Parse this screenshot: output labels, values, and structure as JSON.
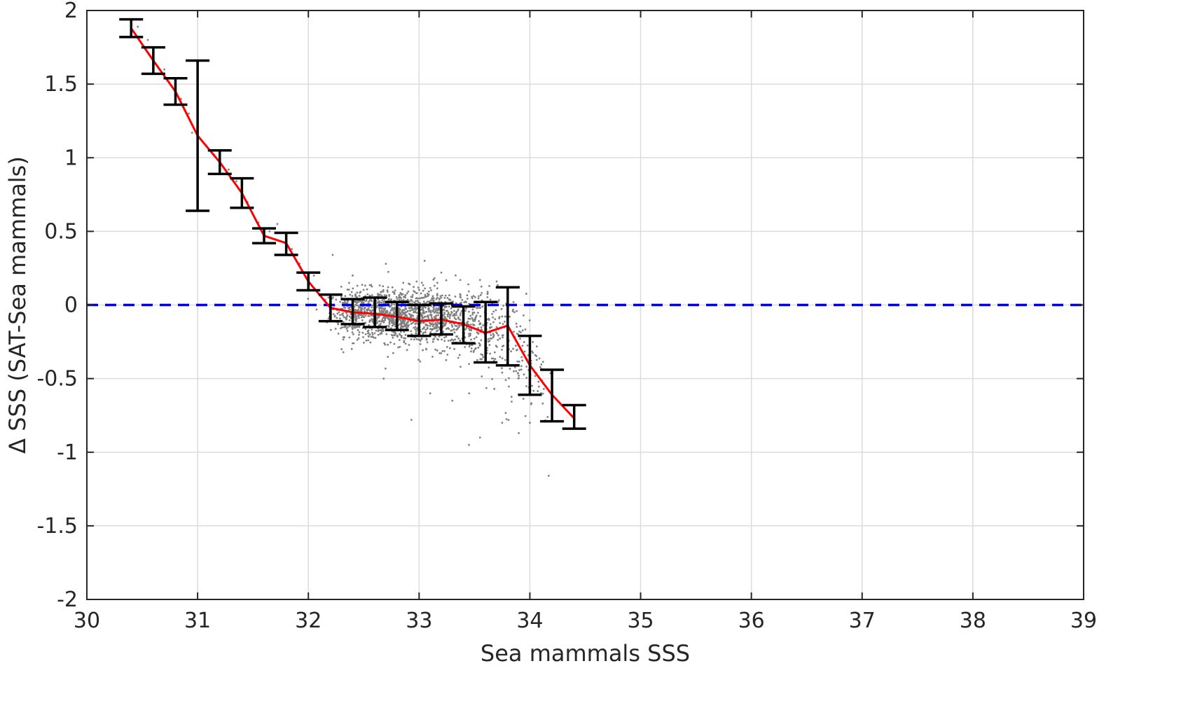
{
  "chart_data": {
    "type": "scatter",
    "xlabel": "Sea mammals SSS",
    "ylabel": "Δ SSS (SAT-Sea mammals)",
    "xlim": [
      30,
      39
    ],
    "ylim": [
      -2,
      2
    ],
    "xticks": [
      "30",
      "31",
      "32",
      "33",
      "34",
      "35",
      "36",
      "37",
      "38",
      "39"
    ],
    "yticks": [
      "2",
      "1.5",
      "1",
      "0.5",
      "0",
      "-0.5",
      "-1",
      "-1.5",
      "-2"
    ],
    "grid": true,
    "reference_line": {
      "y": 0,
      "style": "dashed",
      "color": "#0000e6"
    },
    "binned_mean": {
      "color": "#ff0000",
      "x": [
        30.4,
        30.6,
        30.8,
        31.0,
        31.2,
        31.4,
        31.6,
        31.8,
        32.0,
        32.2,
        32.4,
        32.6,
        32.8,
        33.0,
        33.2,
        33.4,
        33.6,
        33.8,
        34.0,
        34.2,
        34.4
      ],
      "y": [
        1.88,
        1.66,
        1.45,
        1.15,
        0.97,
        0.76,
        0.47,
        0.42,
        0.16,
        -0.02,
        -0.05,
        -0.06,
        -0.08,
        -0.11,
        -0.1,
        -0.13,
        -0.19,
        -0.14,
        -0.41,
        -0.61,
        -0.77
      ],
      "err_low": [
        1.82,
        1.57,
        1.36,
        0.64,
        0.89,
        0.66,
        0.42,
        0.34,
        0.1,
        -0.11,
        -0.13,
        -0.15,
        -0.17,
        -0.21,
        -0.2,
        -0.26,
        -0.39,
        -0.41,
        -0.61,
        -0.79,
        -0.84
      ],
      "err_high": [
        1.94,
        1.75,
        1.54,
        1.66,
        1.05,
        0.86,
        0.52,
        0.49,
        0.22,
        0.07,
        0.04,
        0.05,
        0.02,
        0.0,
        0.01,
        -0.01,
        0.02,
        0.12,
        -0.21,
        -0.44,
        -0.68
      ]
    },
    "scatter": {
      "color": "#808080",
      "outliers": [
        [
          30.46,
          1.89
        ],
        [
          30.55,
          1.8
        ],
        [
          30.7,
          1.6
        ],
        [
          30.85,
          1.4
        ],
        [
          30.92,
          1.3
        ],
        [
          30.95,
          1.17
        ],
        [
          31.08,
          1.08
        ],
        [
          31.15,
          1.02
        ],
        [
          31.28,
          0.92
        ],
        [
          31.35,
          0.84
        ],
        [
          31.45,
          0.7
        ],
        [
          31.55,
          0.56
        ],
        [
          31.65,
          0.5
        ],
        [
          31.72,
          0.55
        ],
        [
          31.85,
          0.38
        ],
        [
          31.92,
          0.28
        ],
        [
          32.05,
          0.2
        ],
        [
          32.22,
          0.34
        ],
        [
          32.3,
          -0.3
        ],
        [
          32.68,
          -0.5
        ],
        [
          32.93,
          -0.78
        ],
        [
          33.05,
          0.3
        ],
        [
          33.1,
          -0.6
        ],
        [
          33.3,
          -0.65
        ],
        [
          33.45,
          -0.95
        ],
        [
          33.55,
          -0.9
        ],
        [
          33.75,
          -0.8
        ],
        [
          33.9,
          -0.87
        ],
        [
          34.0,
          -0.8
        ],
        [
          34.17,
          -1.16
        ],
        [
          33.55,
          0.17
        ],
        [
          33.7,
          0.16
        ],
        [
          32.7,
          0.28
        ],
        [
          32.4,
          0.2
        ],
        [
          33.2,
          0.22
        ]
      ],
      "clusters": [
        {
          "x_mean": 32.45,
          "x_sd": 0.13,
          "y_mean": -0.05,
          "y_sd": 0.08,
          "n": 320
        },
        {
          "x_mean": 32.8,
          "x_sd": 0.18,
          "y_mean": -0.07,
          "y_sd": 0.09,
          "n": 700
        },
        {
          "x_mean": 33.2,
          "x_sd": 0.15,
          "y_mean": -0.09,
          "y_sd": 0.1,
          "n": 420
        },
        {
          "x_mean": 33.55,
          "x_sd": 0.12,
          "y_mean": -0.16,
          "y_sd": 0.14,
          "n": 160
        },
        {
          "x_mean": 33.85,
          "x_sd": 0.12,
          "y_mean": -0.3,
          "y_sd": 0.2,
          "n": 110
        },
        {
          "x_mean": 34.05,
          "x_sd": 0.08,
          "y_mean": -0.5,
          "y_sd": 0.15,
          "n": 30
        }
      ]
    }
  }
}
